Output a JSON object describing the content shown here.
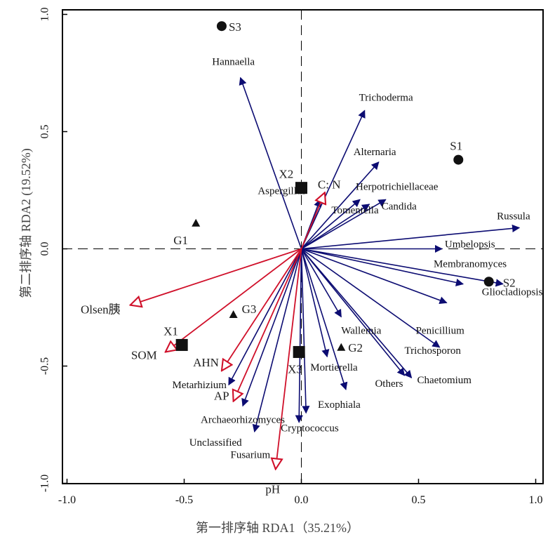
{
  "chart_data": {
    "type": "scatter",
    "subtype": "rda-biplot",
    "xlabel": "第一排序轴 RDA1（35.21%）",
    "ylabel": "第二排序轴 RDA2 (19.52%)",
    "xlim": [
      -1.0,
      1.0
    ],
    "ylim": [
      -1.0,
      1.0
    ],
    "x_ticks": [
      "-1.0",
      "-0.5",
      "0.0",
      "0.5",
      "1.0"
    ],
    "y_ticks": [
      "-1.0",
      "-0.5",
      "0.0",
      "0.5",
      "1.0"
    ],
    "grid": false,
    "zero_lines": "dashed",
    "species_color": "#0c0c72",
    "env_color": "#d0102a",
    "species_arrows": [
      {
        "name": "Hannaella",
        "x": -0.26,
        "y": 0.73
      },
      {
        "name": "Trichoderma",
        "x": 0.27,
        "y": 0.59
      },
      {
        "name": "Alternaria",
        "x": 0.33,
        "y": 0.37
      },
      {
        "name": "Herpotrichiellaceae",
        "x": 0.25,
        "y": 0.21
      },
      {
        "name": "Tomentella",
        "x": 0.29,
        "y": 0.19
      },
      {
        "name": "Candida",
        "x": 0.36,
        "y": 0.21
      },
      {
        "name": "Aspergillus",
        "x": 0.08,
        "y": 0.21
      },
      {
        "name": "Russula",
        "x": 0.93,
        "y": 0.09
      },
      {
        "name": "Umbelopsis",
        "x": 0.6,
        "y": 0.0
      },
      {
        "name": "Membranomyces",
        "x": 0.69,
        "y": -0.15
      },
      {
        "name": "Gliocladiopsis",
        "x": 0.86,
        "y": -0.15
      },
      {
        "name": "Penicillium",
        "x": 0.62,
        "y": -0.23
      },
      {
        "name": "Wallemia",
        "x": 0.17,
        "y": -0.29
      },
      {
        "name": "Trichosporon",
        "x": 0.59,
        "y": -0.42
      },
      {
        "name": "Chaetomium",
        "x": 0.47,
        "y": -0.55
      },
      {
        "name": "Others",
        "x": 0.44,
        "y": -0.54
      },
      {
        "name": "Mortierella",
        "x": 0.11,
        "y": -0.46
      },
      {
        "name": "Exophiala",
        "x": 0.19,
        "y": -0.6
      },
      {
        "name": "Cryptococcus",
        "x": 0.02,
        "y": -0.7
      },
      {
        "name": "Metarhizium",
        "x": -0.31,
        "y": -0.58
      },
      {
        "name": "Archaeorhizomyces",
        "x": -0.25,
        "y": -0.67
      },
      {
        "name": "Unclassified",
        "x": -0.2,
        "y": -0.78
      },
      {
        "name": "Fusarium",
        "x": -0.01,
        "y": -0.74
      }
    ],
    "env_arrows": [
      {
        "name": "C: N",
        "x": 0.1,
        "y": 0.24
      },
      {
        "name": "Olsen胰",
        "x": -0.73,
        "y": -0.24
      },
      {
        "name": "SOM",
        "x": -0.58,
        "y": -0.44
      },
      {
        "name": "AHN",
        "x": -0.34,
        "y": -0.52
      },
      {
        "name": "AP",
        "x": -0.29,
        "y": -0.65
      },
      {
        "name": "pH",
        "x": -0.11,
        "y": -0.94
      }
    ],
    "points": [
      {
        "name": "S1",
        "x": 0.67,
        "y": 0.38,
        "shape": "circle"
      },
      {
        "name": "S2",
        "x": 0.8,
        "y": -0.14,
        "shape": "circle"
      },
      {
        "name": "S3",
        "x": -0.34,
        "y": 0.95,
        "shape": "circle"
      },
      {
        "name": "X1",
        "x": -0.51,
        "y": -0.41,
        "shape": "square"
      },
      {
        "name": "X2",
        "x": 0.0,
        "y": 0.26,
        "shape": "square"
      },
      {
        "name": "X3",
        "x": -0.01,
        "y": -0.44,
        "shape": "square"
      },
      {
        "name": "G1",
        "x": -0.45,
        "y": 0.11,
        "shape": "triangle"
      },
      {
        "name": "G2",
        "x": 0.17,
        "y": -0.42,
        "shape": "triangle"
      },
      {
        "name": "G3",
        "x": -0.29,
        "y": -0.28,
        "shape": "triangle"
      }
    ]
  }
}
